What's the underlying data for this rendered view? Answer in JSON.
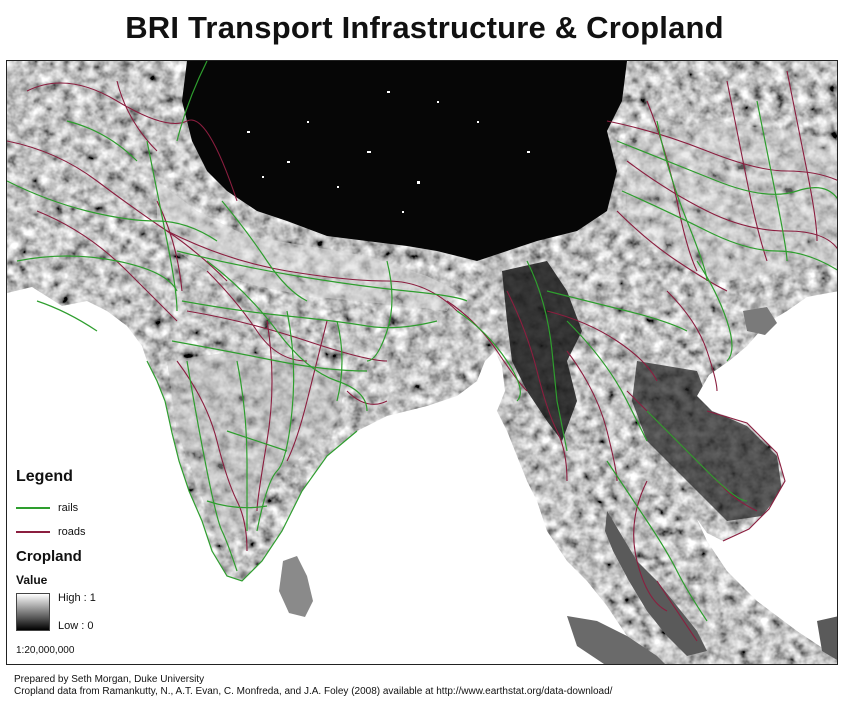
{
  "title": "BRI Transport Infrastructure & Cropland",
  "legend": {
    "title": "Legend",
    "items": [
      {
        "label": "rails",
        "color": "#2e9e2e"
      },
      {
        "label": "roads",
        "color": "#8b1e3f"
      }
    ],
    "cropland_title": "Cropland",
    "value_label": "Value",
    "high_label": "High : 1",
    "low_label": "Low : 0"
  },
  "scale": "1:20,000,000",
  "credits": {
    "line1": "Prepared by Seth Morgan, Duke University",
    "line2": "Cropland data from Ramankutty, N., A.T. Evan, C. Monfreda, and J.A. Foley (2008) available at http://www.earthstat.org/data-download/"
  },
  "colors": {
    "rails": "#2e9e2e",
    "roads": "#8b1e3f",
    "sea": "#ffffff",
    "plateau": "#050505"
  }
}
